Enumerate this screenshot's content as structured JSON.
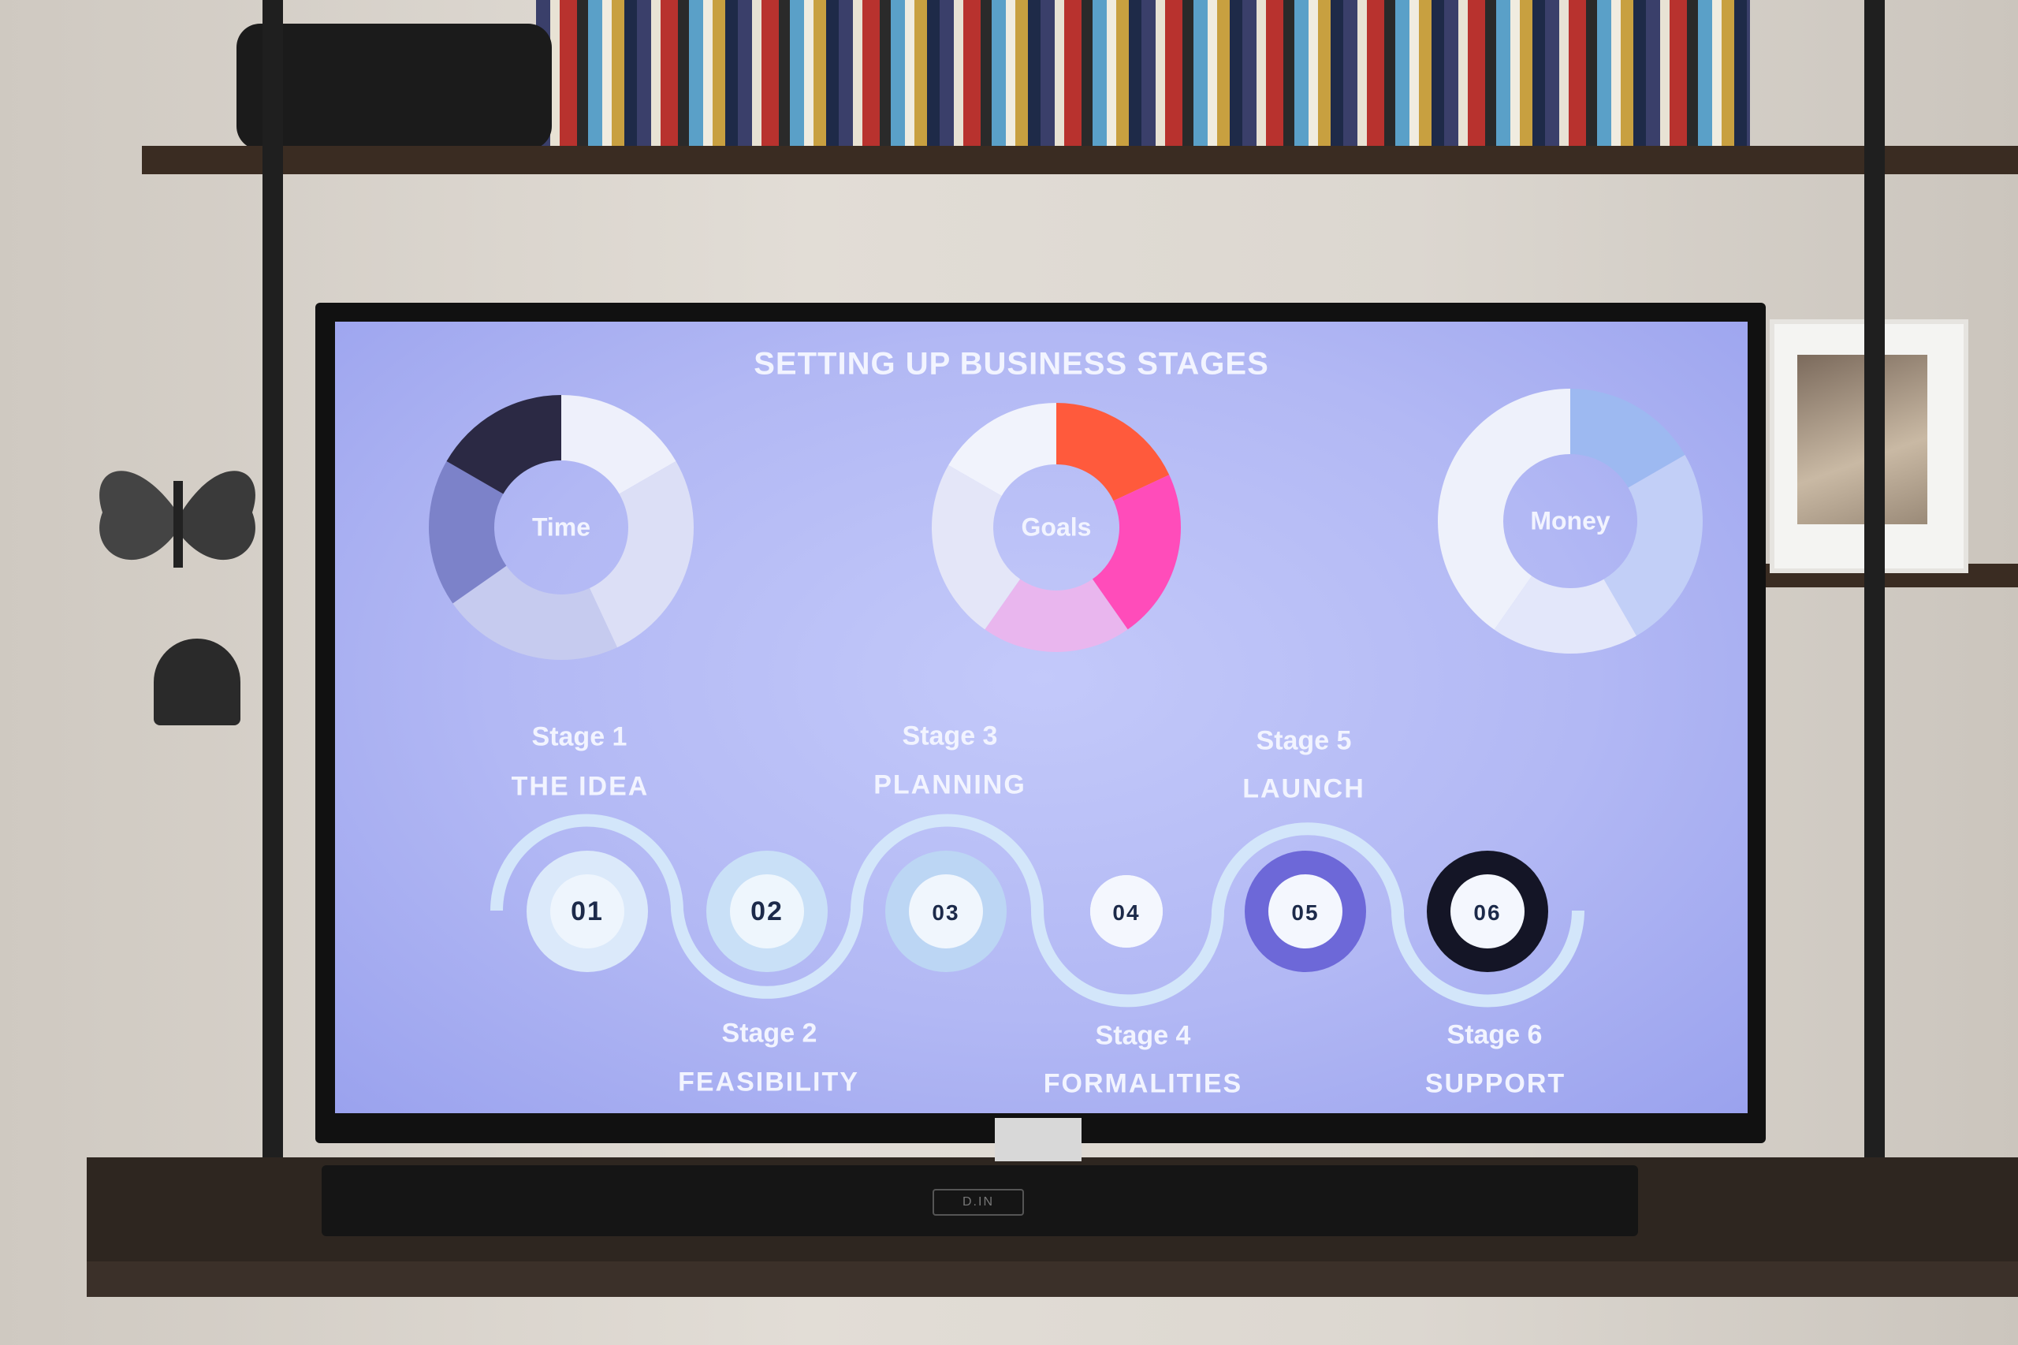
{
  "slide": {
    "title": "SETTING UP BUSINESS STAGES",
    "donuts": [
      {
        "label": "Time",
        "segments": [
          {
            "value": 60,
            "color": "#eef0fb"
          },
          {
            "value": 95,
            "color": "#dcdff6"
          },
          {
            "value": 80,
            "color": "#c6cbef"
          },
          {
            "value": 65,
            "color": "#7c82c9"
          },
          {
            "value": 60,
            "color": "#2b2944"
          }
        ]
      },
      {
        "label": "Goals",
        "segments": [
          {
            "value": 65,
            "color": "#ff5a3c"
          },
          {
            "value": 80,
            "color": "#ff4cba"
          },
          {
            "value": 70,
            "color": "#e9b6ee"
          },
          {
            "value": 85,
            "color": "#e4e6f8"
          },
          {
            "value": 60,
            "color": "#f1f3fc"
          }
        ]
      },
      {
        "label": "Money",
        "segments": [
          {
            "value": 60,
            "color": "#9db9f1"
          },
          {
            "value": 90,
            "color": "#c2cff7"
          },
          {
            "value": 65,
            "color": "#e3e7fa"
          },
          {
            "value": 145,
            "color": "#eef1fb"
          }
        ]
      }
    ],
    "stages": [
      {
        "stage": "Stage 1",
        "name": "THE IDEA",
        "number": "01",
        "ring": "#dbe9fa",
        "inner": "#eef5fd"
      },
      {
        "stage": "Stage 2",
        "name": "FEASIBILITY",
        "number": "02",
        "ring": "#c9e0f7",
        "inner": "#eef6fd"
      },
      {
        "stage": "Stage 3",
        "name": "PLANNING",
        "number": "03",
        "ring": "#bcd6f4",
        "inner": "#f0f6fd"
      },
      {
        "stage": "Stage 4",
        "name": "FORMALITIES",
        "number": "04",
        "ring": "#f4f7fe",
        "inner": "#f4f7fe"
      },
      {
        "stage": "Stage 5",
        "name": "LAUNCH",
        "number": "05",
        "ring": "#6d68d8",
        "inner": "#f4f7fe"
      },
      {
        "stage": "Stage 6",
        "name": "SUPPORT",
        "number": "06",
        "ring": "#141526",
        "inner": "#f4f7fe"
      }
    ],
    "wave_color": "#d3e6fa",
    "number_color": "#1c2a4a"
  },
  "soundbar": {
    "display": "D.IN"
  }
}
